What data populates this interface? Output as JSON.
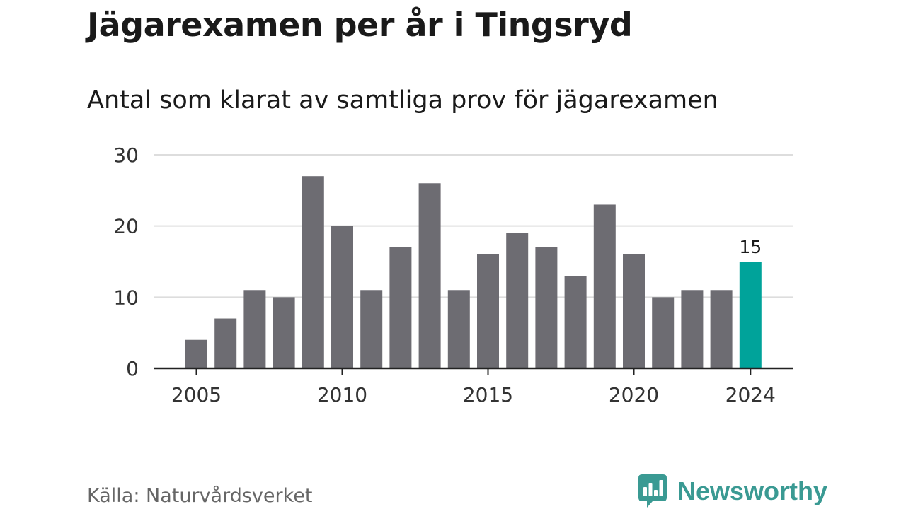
{
  "title": "Jägarexamen per år i Tingsryd",
  "subtitle": "Antal som klarat av samtliga prov för jägarexamen",
  "source": "Källa: Naturvårdsverket",
  "brand": {
    "name": "Newsworthy",
    "icon": "bar-chart-speech-bubble-icon"
  },
  "colors": {
    "bar": "#6d6c72",
    "highlight": "#00a39a",
    "grid": "#dddddd",
    "axis": "#222222",
    "brand": "#3a9a93"
  },
  "chart_data": {
    "type": "bar",
    "x": [
      2005,
      2006,
      2007,
      2008,
      2009,
      2010,
      2011,
      2012,
      2013,
      2014,
      2015,
      2016,
      2017,
      2018,
      2019,
      2020,
      2021,
      2022,
      2023,
      2024
    ],
    "values": [
      4,
      7,
      11,
      10,
      27,
      20,
      11,
      17,
      26,
      11,
      16,
      19,
      17,
      13,
      23,
      16,
      10,
      11,
      11,
      15
    ],
    "xticks": [
      "2005",
      "2010",
      "2015",
      "2020",
      "2024"
    ],
    "yticks": [
      "0",
      "10",
      "20",
      "30"
    ],
    "ylim": [
      0,
      30
    ],
    "highlight": {
      "x": 2024,
      "label": "15"
    },
    "grid": true
  }
}
